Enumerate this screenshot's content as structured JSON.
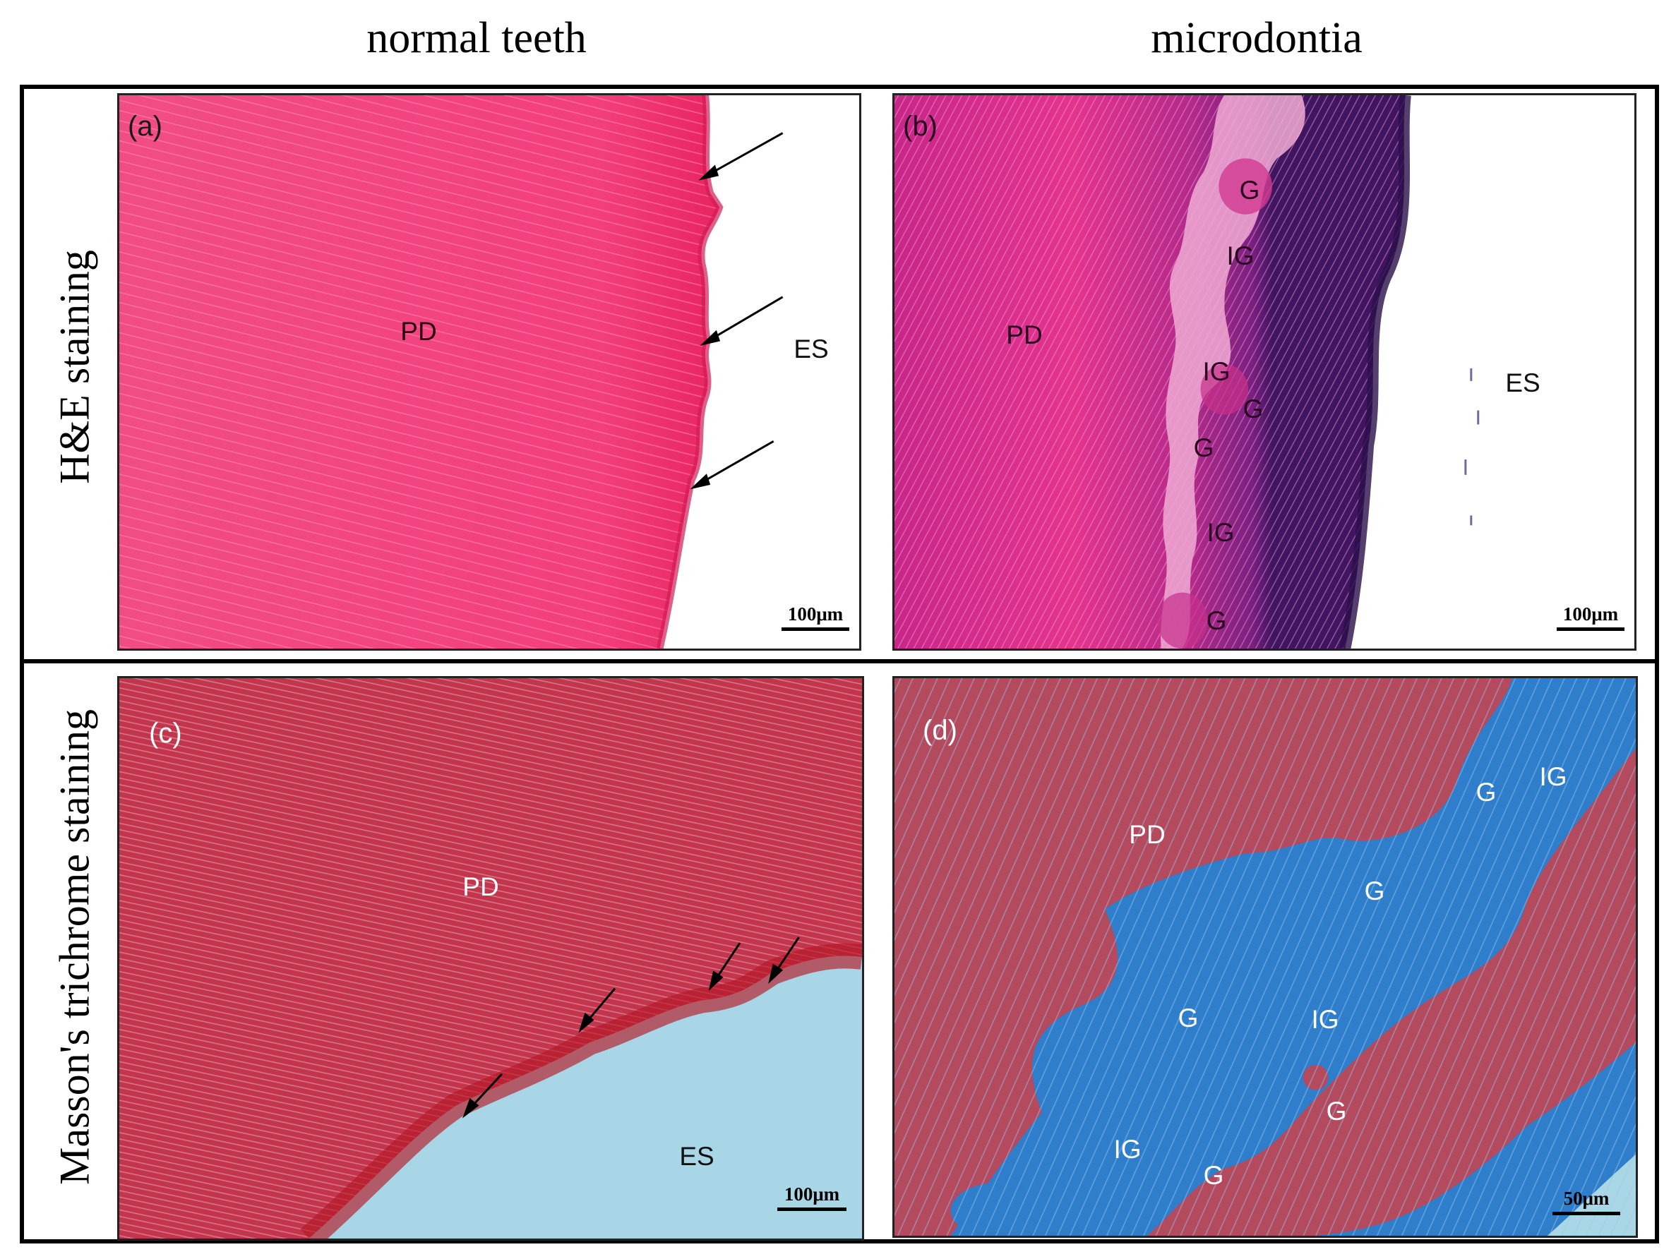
{
  "columns": {
    "left": "normal teeth",
    "right": "microdontia"
  },
  "rows": {
    "top": "H&E staining",
    "bottom": "Masson's trichrome staining"
  },
  "panels": {
    "a": {
      "tag": "(a)",
      "scale_bar": "100μm",
      "labels": [
        "PD",
        "ES"
      ],
      "colors": {
        "tissue": "#f2407c",
        "background": "#ffffff",
        "arrow": "#000000"
      }
    },
    "b": {
      "tag": "(b)",
      "scale_bar": "100μm",
      "labels": [
        "PD",
        "ES",
        "G",
        "IG",
        "IG",
        "G",
        "G",
        "IG",
        "G"
      ],
      "colors": {
        "tissue": "#d0308c",
        "dark_edge": "#5a1a78",
        "interglobular": "#e79ac9",
        "background": "#ffffff"
      }
    },
    "c": {
      "tag": "(c)",
      "scale_bar": "100μm",
      "labels": [
        "PD",
        "ES"
      ],
      "colors": {
        "tissue": "#bf2f3e",
        "background": "#a9d8e8",
        "arrow": "#000000"
      }
    },
    "d": {
      "tag": "(d)",
      "scale_bar": "50μm",
      "labels": [
        "G",
        "IG",
        "PD",
        "G",
        "G",
        "IG",
        "G",
        "IG",
        "G"
      ],
      "colors": {
        "tissue": "#b54a5e",
        "interglobular": "#2f7dc8",
        "background": "#a9d8e8"
      }
    }
  }
}
